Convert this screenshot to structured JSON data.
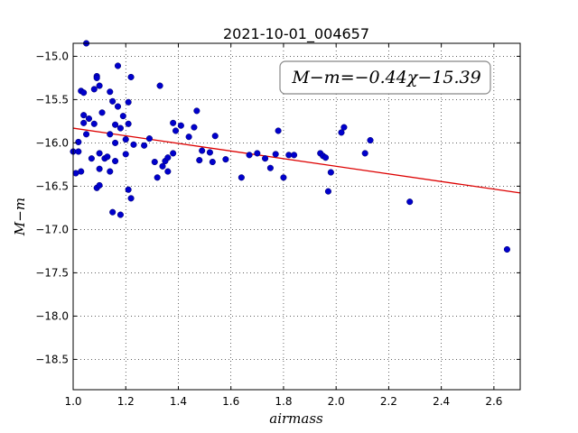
{
  "chart_data": {
    "type": "scatter",
    "title": "2021-10-01_004657",
    "xlabel": "airmass",
    "ylabel": "M−m",
    "xlim": [
      1.0,
      2.7
    ],
    "ylim": [
      -18.85,
      -14.85
    ],
    "y_inverted": true,
    "grid": true,
    "grid_style": "dotted",
    "x_ticks": [
      1.0,
      1.2,
      1.4,
      1.6,
      1.8,
      2.0,
      2.2,
      2.4,
      2.6
    ],
    "x_tick_labels": [
      "1.0",
      "1.2",
      "1.4",
      "1.6",
      "1.8",
      "2.0",
      "2.2",
      "2.4",
      "2.6"
    ],
    "y_ticks": [
      -15.0,
      -15.5,
      -16.0,
      -16.5,
      -17.0,
      -17.5,
      -18.0,
      -18.5
    ],
    "y_tick_labels": [
      "−15.0",
      "−15.5",
      "−16.0",
      "−16.5",
      "−17.0",
      "−17.5",
      "−18.0",
      "−18.5"
    ],
    "annotation": "M−m=−0.44χ−15.39",
    "fit": {
      "slope": -0.44,
      "intercept": -15.39,
      "color": "#dd0000"
    },
    "point_color": "#0000cc",
    "series": [
      {
        "x": [
          1.0,
          1.01,
          1.02,
          1.02,
          1.03,
          1.03,
          1.04,
          1.04,
          1.04,
          1.05,
          1.05,
          1.06,
          1.07,
          1.08,
          1.08,
          1.09,
          1.09,
          1.09,
          1.1,
          1.1,
          1.1,
          1.1,
          1.11,
          1.12,
          1.13,
          1.14,
          1.14,
          1.14,
          1.15,
          1.15,
          1.16,
          1.16,
          1.16,
          1.17,
          1.17,
          1.18,
          1.18,
          1.19,
          1.2,
          1.2,
          1.21,
          1.21,
          1.21,
          1.22,
          1.22,
          1.23,
          1.27,
          1.29,
          1.31,
          1.32,
          1.33,
          1.34,
          1.35,
          1.36,
          1.36,
          1.38,
          1.38,
          1.39,
          1.41,
          1.44,
          1.46,
          1.47,
          1.48,
          1.49,
          1.52,
          1.53,
          1.54,
          1.58,
          1.64,
          1.67,
          1.7,
          1.73,
          1.75,
          1.77,
          1.78,
          1.8,
          1.82,
          1.84,
          1.94,
          1.95,
          1.96,
          1.97,
          1.98,
          2.02,
          2.03,
          2.11,
          2.13,
          2.28,
          2.65
        ],
        "y": [
          -16.1,
          -16.35,
          -15.99,
          -16.1,
          -16.33,
          -15.4,
          -15.68,
          -15.77,
          -15.42,
          -15.9,
          -14.85,
          -15.72,
          -16.18,
          -15.38,
          -15.78,
          -15.23,
          -15.25,
          -16.52,
          -15.34,
          -16.12,
          -16.3,
          -16.49,
          -15.65,
          -16.18,
          -16.16,
          -15.9,
          -15.41,
          -16.33,
          -16.8,
          -15.52,
          -16.21,
          -15.79,
          -16.0,
          -15.11,
          -15.58,
          -15.83,
          -16.83,
          -15.69,
          -16.13,
          -15.96,
          -15.53,
          -15.78,
          -16.54,
          -15.24,
          -16.64,
          -16.02,
          -16.03,
          -15.95,
          -16.22,
          -16.4,
          -15.34,
          -16.27,
          -16.21,
          -16.17,
          -16.33,
          -16.12,
          -15.77,
          -15.86,
          -15.8,
          -15.93,
          -15.82,
          -15.63,
          -16.2,
          -16.09,
          -16.11,
          -16.22,
          -15.92,
          -16.19,
          -16.4,
          -16.14,
          -16.12,
          -16.18,
          -16.29,
          -16.13,
          -15.86,
          -16.4,
          -16.14,
          -16.14,
          -16.12,
          -16.15,
          -16.17,
          -16.56,
          -16.34,
          -15.88,
          -15.82,
          -16.12,
          -15.97,
          -16.68,
          -17.23
        ]
      }
    ]
  }
}
